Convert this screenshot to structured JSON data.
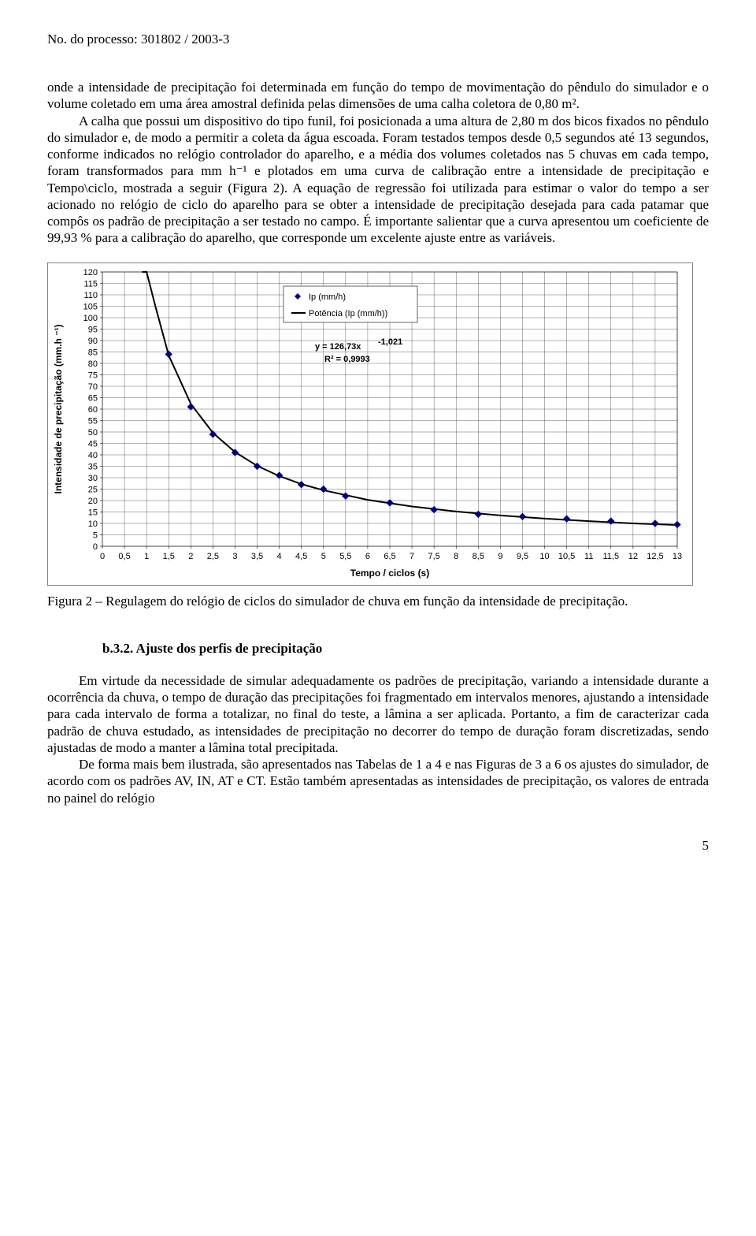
{
  "header": "No. do processo: 301802 / 2003-3",
  "para1": "onde a intensidade de precipitação foi determinada em função do tempo de movimentação do pêndulo do simulador e o volume coletado em uma área amostral definida pelas dimensões de uma calha coletora de 0,80 m².",
  "para2": "A calha que possui um dispositivo do tipo funil, foi posicionada a uma altura de 2,80 m dos bicos fixados no pêndulo do simulador e, de modo a permitir a coleta da água escoada. Foram testados tempos desde 0,5 segundos até 13 segundos, conforme indicados no relógio controlador do aparelho, e a média dos volumes coletados nas 5 chuvas em cada tempo, foram transformados para mm h⁻¹ e plotados em uma curva de calibração entre a intensidade de precipitação e Tempo\\ciclo, mostrada a seguir (Figura 2). A equação de regressão foi utilizada para estimar o valor do tempo a ser acionado no relógio de ciclo do aparelho para se obter a intensidade de precipitação desejada para cada patamar que compôs os padrão de precipitação a ser testado no campo. É importante salientar que a curva apresentou um coeficiente de 99,93 % para a calibração do aparelho, que corresponde um excelente ajuste entre as variáveis.",
  "caption": "Figura 2 – Regulagem do relógio de ciclos do simulador de chuva em função da intensidade de precipitação.",
  "section_title": "b.3.2. Ajuste dos perfis de precipitação",
  "para3": "Em virtude da necessidade de simular adequadamente os padrões de precipitação, variando a intensidade durante a ocorrência da chuva, o tempo de duração das precipitações foi fragmentado em intervalos menores, ajustando a intensidade para cada intervalo de forma a totalizar, no final do teste, a lâmina a ser aplicada. Portanto, a fim de caracterizar cada padrão de chuva estudado, as intensidades de precipitação no decorrer do tempo de duração foram discretizadas, sendo ajustadas de modo a manter a lâmina total precipitada.",
  "para4": "De forma mais bem ilustrada, são apresentados nas Tabelas de 1 a 4 e nas Figuras de 3 a 6 os ajustes do simulador, de acordo com os padrões AV, IN, AT e CT. Estão também apresentadas as intensidades de precipitação, os valores de entrada no painel do relógio",
  "page_num": "5",
  "chart": {
    "type": "scatter-with-curve",
    "xlabel": "Tempo / ciclos (s)",
    "ylabel": "Intensidade de precipitação (mm.h ⁻¹)",
    "legend_series": "Ip (mm/h)",
    "legend_fit": "Potência (Ip (mm/h))",
    "equation_line1": "y = 126,73x",
    "equation_exp": "-1,021",
    "equation_line2": "R² = 0,9993",
    "xlim": [
      0,
      13
    ],
    "xtick_step": 0.5,
    "ylim": [
      0,
      120
    ],
    "ytick_step": 5,
    "marker_color": "#000080",
    "marker_size": 4,
    "line_color": "#000000",
    "line_width": 2,
    "grid_color": "#000000",
    "grid_width": 0.3,
    "background_color": "#ffffff",
    "border_color": "#808080",
    "data_points": [
      {
        "x": 1.5,
        "y": 84
      },
      {
        "x": 2.0,
        "y": 61
      },
      {
        "x": 2.5,
        "y": 49
      },
      {
        "x": 3.0,
        "y": 41
      },
      {
        "x": 3.5,
        "y": 35
      },
      {
        "x": 4.0,
        "y": 31
      },
      {
        "x": 4.5,
        "y": 27
      },
      {
        "x": 5.0,
        "y": 25
      },
      {
        "x": 5.5,
        "y": 22
      },
      {
        "x": 6.5,
        "y": 19
      },
      {
        "x": 7.5,
        "y": 16
      },
      {
        "x": 8.5,
        "y": 14
      },
      {
        "x": 9.5,
        "y": 13
      },
      {
        "x": 10.5,
        "y": 12
      },
      {
        "x": 11.5,
        "y": 11
      },
      {
        "x": 12.5,
        "y": 10
      },
      {
        "x": 13.0,
        "y": 9.5
      }
    ],
    "curve_samples": [
      {
        "x": 0.9,
        "y": 140
      },
      {
        "x": 1.0,
        "y": 126.7
      },
      {
        "x": 1.2,
        "y": 104.9
      },
      {
        "x": 1.5,
        "y": 83.5
      },
      {
        "x": 2.0,
        "y": 62.3
      },
      {
        "x": 2.5,
        "y": 49.6
      },
      {
        "x": 3.0,
        "y": 41.2
      },
      {
        "x": 3.5,
        "y": 35.2
      },
      {
        "x": 4.0,
        "y": 30.7
      },
      {
        "x": 4.5,
        "y": 27.2
      },
      {
        "x": 5.0,
        "y": 24.5
      },
      {
        "x": 6.0,
        "y": 20.3
      },
      {
        "x": 7.0,
        "y": 17.4
      },
      {
        "x": 8.0,
        "y": 15.2
      },
      {
        "x": 9.0,
        "y": 13.5
      },
      {
        "x": 10.0,
        "y": 12.1
      },
      {
        "x": 11.0,
        "y": 11.0
      },
      {
        "x": 12.0,
        "y": 10.0
      },
      {
        "x": 13.0,
        "y": 9.3
      }
    ]
  }
}
